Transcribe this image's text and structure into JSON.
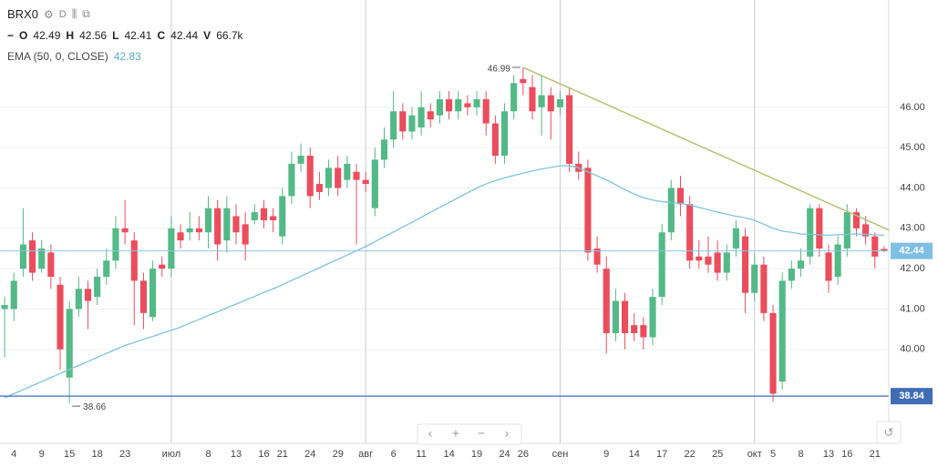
{
  "header": {
    "interval": "D",
    "legend_labels": [
      "O",
      "H",
      "L",
      "C",
      "V"
    ],
    "volume": "66.7k"
  },
  "chart_data": {
    "type": "candlestick",
    "categories": [
      null,
      "4",
      null,
      null,
      "9",
      null,
      null,
      "15",
      null,
      null,
      "18",
      null,
      null,
      "23",
      null,
      null,
      null,
      null,
      "июл",
      null,
      null,
      null,
      "8",
      null,
      null,
      "13",
      null,
      null,
      "16",
      null,
      "21",
      null,
      null,
      "24",
      null,
      null,
      "29",
      null,
      null,
      "авг",
      null,
      null,
      "6",
      null,
      null,
      "11",
      null,
      null,
      "14",
      null,
      null,
      "19",
      null,
      null,
      "24",
      null,
      "26",
      null,
      null,
      null,
      "сен",
      null,
      null,
      null,
      null,
      "9",
      null,
      null,
      "14",
      null,
      null,
      "17",
      null,
      null,
      "22",
      null,
      null,
      "25",
      null,
      null,
      null,
      "окт",
      null,
      "5",
      null,
      null,
      "8",
      null,
      null,
      "13",
      null,
      "16",
      null,
      null,
      "21",
      null
    ],
    "series": [
      {
        "name": "BRX0",
        "up_color": "#53b987",
        "down_color": "#eb4d5c",
        "open": [
          41.0,
          41.0,
          42.0,
          42.7,
          42.0,
          42.4,
          41.6,
          39.3,
          41.0,
          41.5,
          41.3,
          41.8,
          42.2,
          43.0,
          42.7,
          41.7,
          40.8,
          42.1,
          42.0,
          42.9,
          42.9,
          43.0,
          42.9,
          43.5,
          42.7,
          43.3,
          43.1,
          43.2,
          43.5,
          43.3,
          42.8,
          43.8,
          44.6,
          44.8,
          44.1,
          44.0,
          44.5,
          44.2,
          44.4,
          44.2,
          43.5,
          44.7,
          45.2,
          45.9,
          45.4,
          45.5,
          45.9,
          45.8,
          46.2,
          45.9,
          46.1,
          46.0,
          46.2,
          45.6,
          44.8,
          45.9,
          46.7,
          46.5,
          46.0,
          46.3,
          46.0,
          46.3,
          44.6,
          44.5,
          42.5,
          42.0,
          40.4,
          41.2,
          40.6,
          40.6,
          40.3,
          41.3,
          42.9,
          44.0,
          43.6,
          42.3,
          42.3,
          42.4,
          41.9,
          42.5,
          42.8,
          41.4,
          42.1,
          40.9,
          39.2,
          41.7,
          42.0,
          42.3,
          43.5,
          42.4,
          41.8,
          42.5,
          43.4,
          43.1,
          42.8,
          42.49
        ],
        "high": [
          41.3,
          41.9,
          43.5,
          42.9,
          42.7,
          42.6,
          41.8,
          41.2,
          41.8,
          41.7,
          42.0,
          42.5,
          43.3,
          43.7,
          42.9,
          41.9,
          42.2,
          42.3,
          43.3,
          43.1,
          43.4,
          43.3,
          43.8,
          43.7,
          43.8,
          43.6,
          43.4,
          43.6,
          43.7,
          43.5,
          44.0,
          44.9,
          45.1,
          45.0,
          44.4,
          44.7,
          44.8,
          44.8,
          44.6,
          44.4,
          45.0,
          45.5,
          46.4,
          46.1,
          46.0,
          46.4,
          46.1,
          46.4,
          46.4,
          46.4,
          46.3,
          46.4,
          46.4,
          45.8,
          46.1,
          46.8,
          46.99,
          46.8,
          46.8,
          46.5,
          46.4,
          46.5,
          44.9,
          44.7,
          42.8,
          42.3,
          41.5,
          41.4,
          40.9,
          40.8,
          41.5,
          43.1,
          44.2,
          44.3,
          43.8,
          42.7,
          42.8,
          42.7,
          42.6,
          43.2,
          43.0,
          42.4,
          42.3,
          41.1,
          41.9,
          42.2,
          42.5,
          43.6,
          43.6,
          42.6,
          42.8,
          43.6,
          43.5,
          43.3,
          42.9,
          42.56
        ],
        "low": [
          39.8,
          40.7,
          41.8,
          41.7,
          41.9,
          41.5,
          39.5,
          38.66,
          40.8,
          40.5,
          41.1,
          41.6,
          42.0,
          42.6,
          40.6,
          40.5,
          40.7,
          41.8,
          41.8,
          42.5,
          42.7,
          42.7,
          42.5,
          42.2,
          42.4,
          42.6,
          42.2,
          43.1,
          43.0,
          42.9,
          42.6,
          43.6,
          44.4,
          43.5,
          43.7,
          43.8,
          43.8,
          44.0,
          42.6,
          43.9,
          43.3,
          44.5,
          45.0,
          45.2,
          45.2,
          45.3,
          45.5,
          45.6,
          45.7,
          45.7,
          45.8,
          45.8,
          45.3,
          44.6,
          44.6,
          45.7,
          46.3,
          45.7,
          45.3,
          45.2,
          45.8,
          44.4,
          44.2,
          42.2,
          41.9,
          39.9,
          40.2,
          40.0,
          40.2,
          40.0,
          40.1,
          41.1,
          42.7,
          43.3,
          42.0,
          42.0,
          41.9,
          41.7,
          41.7,
          42.3,
          40.9,
          41.2,
          40.7,
          38.7,
          39.0,
          41.5,
          41.8,
          42.1,
          42.3,
          41.4,
          41.6,
          42.3,
          42.8,
          42.6,
          42.0,
          42.41
        ],
        "close": [
          41.1,
          41.7,
          42.6,
          41.9,
          42.5,
          41.8,
          40.0,
          41.0,
          41.5,
          41.2,
          41.8,
          42.2,
          43.0,
          42.9,
          41.7,
          40.9,
          42.0,
          42.0,
          43.0,
          42.7,
          43.0,
          42.9,
          43.5,
          42.6,
          43.5,
          42.9,
          42.6,
          43.4,
          43.2,
          43.2,
          43.8,
          44.6,
          44.8,
          43.8,
          43.9,
          44.5,
          44.0,
          44.6,
          44.2,
          44.1,
          44.7,
          45.2,
          45.9,
          45.4,
          45.8,
          46.0,
          45.7,
          46.2,
          45.9,
          46.2,
          46.0,
          46.2,
          45.6,
          44.8,
          45.9,
          46.6,
          46.6,
          45.9,
          46.3,
          45.9,
          46.2,
          44.6,
          44.4,
          42.4,
          42.1,
          40.4,
          41.2,
          40.4,
          40.4,
          40.3,
          41.3,
          42.9,
          44.0,
          43.6,
          42.2,
          42.2,
          42.1,
          41.9,
          42.4,
          43.0,
          41.4,
          42.1,
          40.9,
          38.9,
          41.7,
          42.0,
          42.2,
          43.5,
          42.5,
          41.7,
          42.6,
          43.4,
          43.0,
          42.8,
          42.3,
          42.44
        ]
      },
      {
        "name": "EMA (50, 0, CLOSE)",
        "type": "line",
        "color": "#7cc4dc",
        "values": [
          38.8,
          38.9,
          39.0,
          39.1,
          39.2,
          39.3,
          39.4,
          39.5,
          39.6,
          39.7,
          39.8,
          39.9,
          40.0,
          40.1,
          40.17,
          40.25,
          40.32,
          40.4,
          40.47,
          40.55,
          40.65,
          40.74,
          40.84,
          40.93,
          41.03,
          41.12,
          41.22,
          41.31,
          41.41,
          41.5,
          41.6,
          41.71,
          41.81,
          41.92,
          42.02,
          42.13,
          42.23,
          42.34,
          42.44,
          42.55,
          42.67,
          42.79,
          42.91,
          43.03,
          43.15,
          43.27,
          43.4,
          43.52,
          43.64,
          43.76,
          43.88,
          44.0,
          44.1,
          44.18,
          44.25,
          44.31,
          44.37,
          44.42,
          44.47,
          44.51,
          44.55,
          44.55,
          44.5,
          44.4,
          44.3,
          44.2,
          44.08,
          43.96,
          43.85,
          43.76,
          43.7,
          43.66,
          43.64,
          43.62,
          43.58,
          43.52,
          43.46,
          43.4,
          43.35,
          43.3,
          43.26,
          43.2,
          43.1,
          43.0,
          42.93,
          42.9,
          42.86,
          42.85,
          42.84,
          42.83,
          42.84,
          42.85,
          42.86,
          42.85,
          42.84,
          42.83
        ]
      }
    ],
    "trendline": {
      "x": [
        56,
        95.6
      ],
      "values": [
        46.99,
        42.95
      ],
      "color": "#b7c06f"
    },
    "levels": [
      {
        "value": 38.84,
        "color": "#3f6db5"
      }
    ],
    "ylim": [
      37.67,
      48.66
    ],
    "yticks": [
      {
        "value": 40,
        "label": "40.00"
      },
      {
        "value": 41,
        "label": "41.00"
      },
      {
        "value": 42,
        "label": "42.00"
      },
      {
        "value": 43,
        "label": "43.00"
      },
      {
        "value": 44,
        "label": "44.00"
      },
      {
        "value": 45,
        "label": "45.00"
      },
      {
        "value": 46,
        "label": "46.00"
      }
    ],
    "grid": true
  }
}
